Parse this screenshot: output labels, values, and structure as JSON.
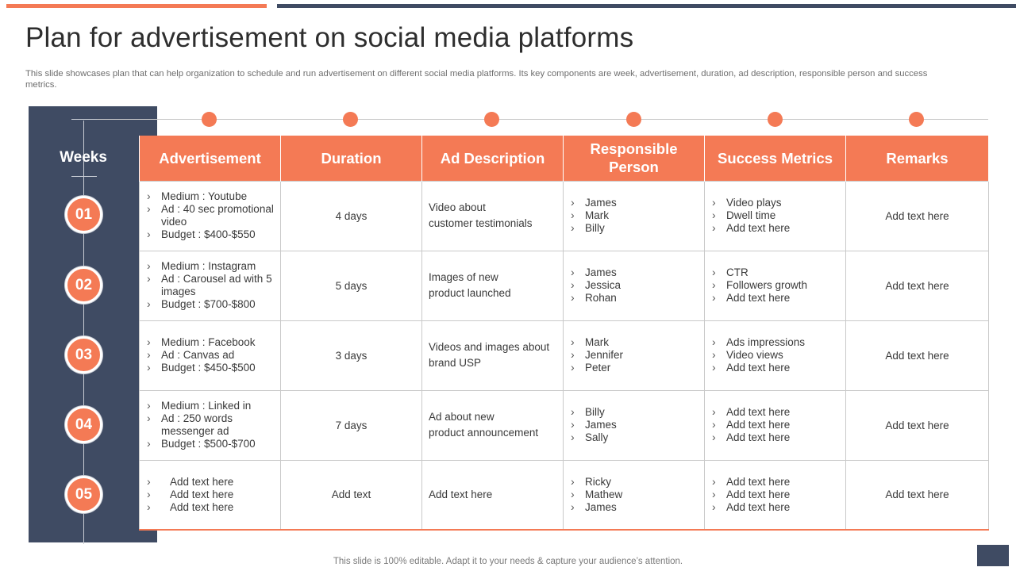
{
  "title": "Plan for advertisement on social media platforms",
  "subtitle": "This slide showcases plan that can help organization to schedule and run advertisement on different social media platforms. Its key components are week, advertisement, duration, ad description, responsible person and success metrics.",
  "weeks_label": "Weeks",
  "headers": {
    "advertisement": "Advertisement",
    "duration": "Duration",
    "ad_description": "Ad Description",
    "responsible_person": "Responsible Person",
    "success_metrics": "Success Metrics",
    "remarks": "Remarks"
  },
  "rows": [
    {
      "week": "01",
      "advertisement": [
        "Medium : Youtube",
        "Ad : 40 sec promotional video",
        "Budget : $400-$550"
      ],
      "duration": "4 days",
      "description": [
        "Video about",
        "customer testimonials"
      ],
      "responsible": [
        "James",
        "Mark",
        "Billy"
      ],
      "metrics": [
        "Video plays",
        "Dwell time",
        "Add text here"
      ],
      "remarks": "Add text here"
    },
    {
      "week": "02",
      "advertisement": [
        "Medium : Instagram",
        "Ad : Carousel ad with 5 images",
        "Budget : $700-$800"
      ],
      "duration": "5 days",
      "description": [
        "Images of new",
        "product launched"
      ],
      "responsible": [
        "James",
        "Jessica",
        "Rohan"
      ],
      "metrics": [
        "CTR",
        "Followers growth",
        "Add text here"
      ],
      "remarks": "Add text here"
    },
    {
      "week": "03",
      "advertisement": [
        "Medium : Facebook",
        "Ad : Canvas  ad",
        "Budget : $450-$500"
      ],
      "duration": "3 days",
      "description": [
        "Videos and images about",
        "brand USP"
      ],
      "responsible": [
        "Mark",
        "Jennifer",
        "Peter"
      ],
      "metrics": [
        "Ads impressions",
        "Video views",
        "Add text here"
      ],
      "remarks": "Add text here"
    },
    {
      "week": "04",
      "advertisement": [
        "Medium : Linked in",
        "Ad : 250 words messenger ad",
        "Budget : $500-$700"
      ],
      "duration": "7 days",
      "description": [
        "Ad about new",
        "product announcement"
      ],
      "responsible": [
        "Billy",
        "James",
        "Sally"
      ],
      "metrics": [
        "Add text here",
        "Add text here",
        "Add text here"
      ],
      "remarks": "Add text here"
    },
    {
      "week": "05",
      "advertisement": [
        "Add text here",
        "Add text here",
        "Add text here"
      ],
      "duration": "Add text",
      "description": [
        "Add text here"
      ],
      "responsible": [
        "Ricky",
        "Mathew",
        "James"
      ],
      "metrics": [
        "Add text here",
        "Add text here",
        "Add text here"
      ],
      "remarks": "Add text here"
    }
  ],
  "footer": "This slide is 100% editable. Adapt it to your needs & capture your audience’s attention.",
  "colors": {
    "accent": "#f47a55",
    "navy": "#3f4b63"
  }
}
